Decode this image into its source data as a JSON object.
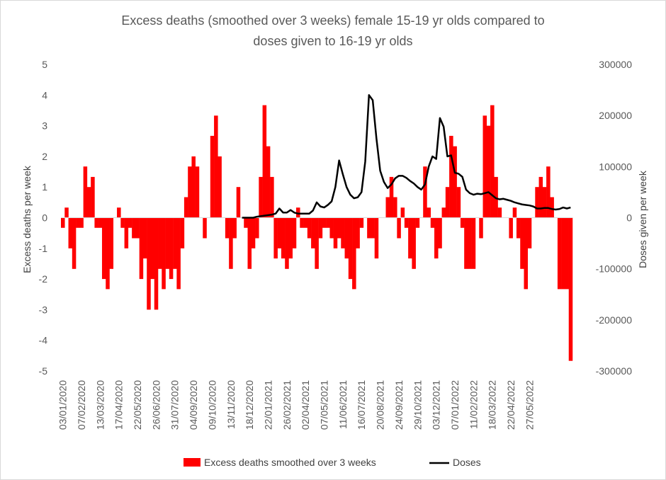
{
  "chart_data": {
    "type": "bar+line",
    "title_lines": [
      "Excess deaths (smoothed over 3 weeks) female 15-19 yr olds compared to",
      "doses given to 16-19 yr olds"
    ],
    "ylabel_left": "Excess deaths per week",
    "ylabel_right": "Doses given per week",
    "ylim_left": [
      -5,
      5
    ],
    "ylim_right": [
      -300000,
      300000
    ],
    "yticks_left": [
      "5",
      "4",
      "3",
      "2",
      "1",
      "0",
      "-1",
      "-2",
      "-3",
      "-4",
      "-5"
    ],
    "yticks_right": [
      "300000",
      "200000",
      "100000",
      "0",
      "-100000",
      "-200000",
      "-300000"
    ],
    "x_tick_labels": [
      "03/01/2020",
      "07/02/2020",
      "13/03/2020",
      "17/04/2020",
      "22/05/2020",
      "26/06/2020",
      "31/07/2020",
      "04/09/2020",
      "09/10/2020",
      "13/11/2020",
      "18/12/2020",
      "22/01/2021",
      "26/02/2021",
      "02/04/2021",
      "07/05/2021",
      "11/06/2021",
      "16/07/2021",
      "20/08/2021",
      "24/09/2021",
      "29/10/2021",
      "03/12/2021",
      "07/01/2022",
      "11/02/2022",
      "18/03/2022",
      "22/04/2022",
      "27/05/2022"
    ],
    "bar_series": {
      "name": "Excess deaths smoothed over 3 weeks",
      "color": "#ff0000",
      "start_week": "03/01/2020",
      "values": [
        -0.33,
        0.33,
        -1,
        -1.67,
        -0.33,
        -0.33,
        1.67,
        1,
        1.33,
        -0.33,
        -0.33,
        -2,
        -2.33,
        -1.67,
        0,
        0.33,
        -0.33,
        -1,
        -0.33,
        -0.67,
        -0.67,
        -2,
        -1.33,
        -3,
        -2,
        -3,
        -1.67,
        -2.33,
        -1.67,
        -2,
        -1.67,
        -2.33,
        -1,
        0.67,
        1.67,
        2,
        1.67,
        0,
        -0.67,
        0,
        2.67,
        3.33,
        2,
        0,
        -0.67,
        -1.67,
        -0.67,
        1,
        0,
        -0.33,
        -1.67,
        -1,
        -0.67,
        1.33,
        3.67,
        2.33,
        1.33,
        -1.33,
        -1,
        -1.33,
        -1.67,
        -1.33,
        -1,
        0.33,
        -0.33,
        -0.33,
        -0.67,
        -1,
        -1.67,
        -0.67,
        -0.33,
        -0.33,
        -0.67,
        -1,
        -0.67,
        -1,
        -1.33,
        -2,
        -2.33,
        -1,
        -0.33,
        0,
        -0.67,
        -0.67,
        -1.33,
        0,
        0,
        0.67,
        1.33,
        0.67,
        -0.67,
        0.33,
        -0.33,
        -1.33,
        -1.67,
        -0.33,
        0,
        1.67,
        0.33,
        -0.33,
        -1.33,
        -1,
        0.33,
        1,
        2.67,
        2.33,
        1,
        -0.33,
        -1.67,
        -1.67,
        -1.67,
        0,
        -0.67,
        3.33,
        3,
        3.67,
        1.33,
        0.33,
        0,
        0,
        -0.67,
        0.33,
        -0.67,
        -1.67,
        -2.33,
        -1,
        0,
        1,
        1.33,
        1,
        1.67,
        0.67,
        0,
        -2.33,
        -2.33,
        -2.33,
        -4.67
      ]
    },
    "line_series": {
      "name": "Doses",
      "color": "#000000",
      "x_week_index": [
        48,
        49,
        50,
        51,
        52,
        53,
        54,
        55,
        56,
        57,
        58,
        59,
        60,
        61,
        62,
        63,
        64,
        65,
        66,
        67,
        68,
        69,
        70,
        71,
        72,
        73,
        74,
        75,
        76,
        77,
        78,
        79,
        80,
        81,
        82,
        83,
        84,
        85,
        86,
        87,
        88,
        89,
        90,
        91,
        92,
        93,
        94,
        95,
        96,
        97,
        98,
        99,
        100,
        101,
        102,
        103,
        104,
        105,
        106,
        107,
        108,
        109,
        110,
        111,
        112,
        113,
        114,
        115,
        116,
        117,
        118,
        119,
        120,
        121,
        122,
        123,
        124,
        125,
        126,
        127,
        128,
        129,
        130,
        131,
        132,
        133,
        134,
        135,
        136
      ],
      "values": [
        0,
        0,
        0,
        0,
        2000,
        3000,
        4000,
        5000,
        6000,
        8000,
        18000,
        10000,
        10000,
        15000,
        10000,
        8000,
        8000,
        8000,
        8000,
        14000,
        30000,
        22000,
        20000,
        25000,
        32000,
        60000,
        112000,
        85000,
        60000,
        45000,
        38000,
        40000,
        50000,
        110000,
        240000,
        230000,
        155000,
        92000,
        70000,
        58000,
        65000,
        77000,
        82000,
        82000,
        78000,
        72000,
        67000,
        60000,
        55000,
        65000,
        100000,
        120000,
        115000,
        195000,
        178000,
        120000,
        122000,
        88000,
        86000,
        80000,
        55000,
        48000,
        45000,
        47000,
        46000,
        48000,
        50000,
        44000,
        38000,
        36000,
        37000,
        35000,
        33000,
        30000,
        28000,
        26000,
        25000,
        24000,
        22000,
        18000,
        18000,
        19000,
        19000,
        17000,
        16000,
        17000,
        20000,
        18000,
        20000
      ]
    },
    "legend_position": "bottom",
    "grid": false
  }
}
